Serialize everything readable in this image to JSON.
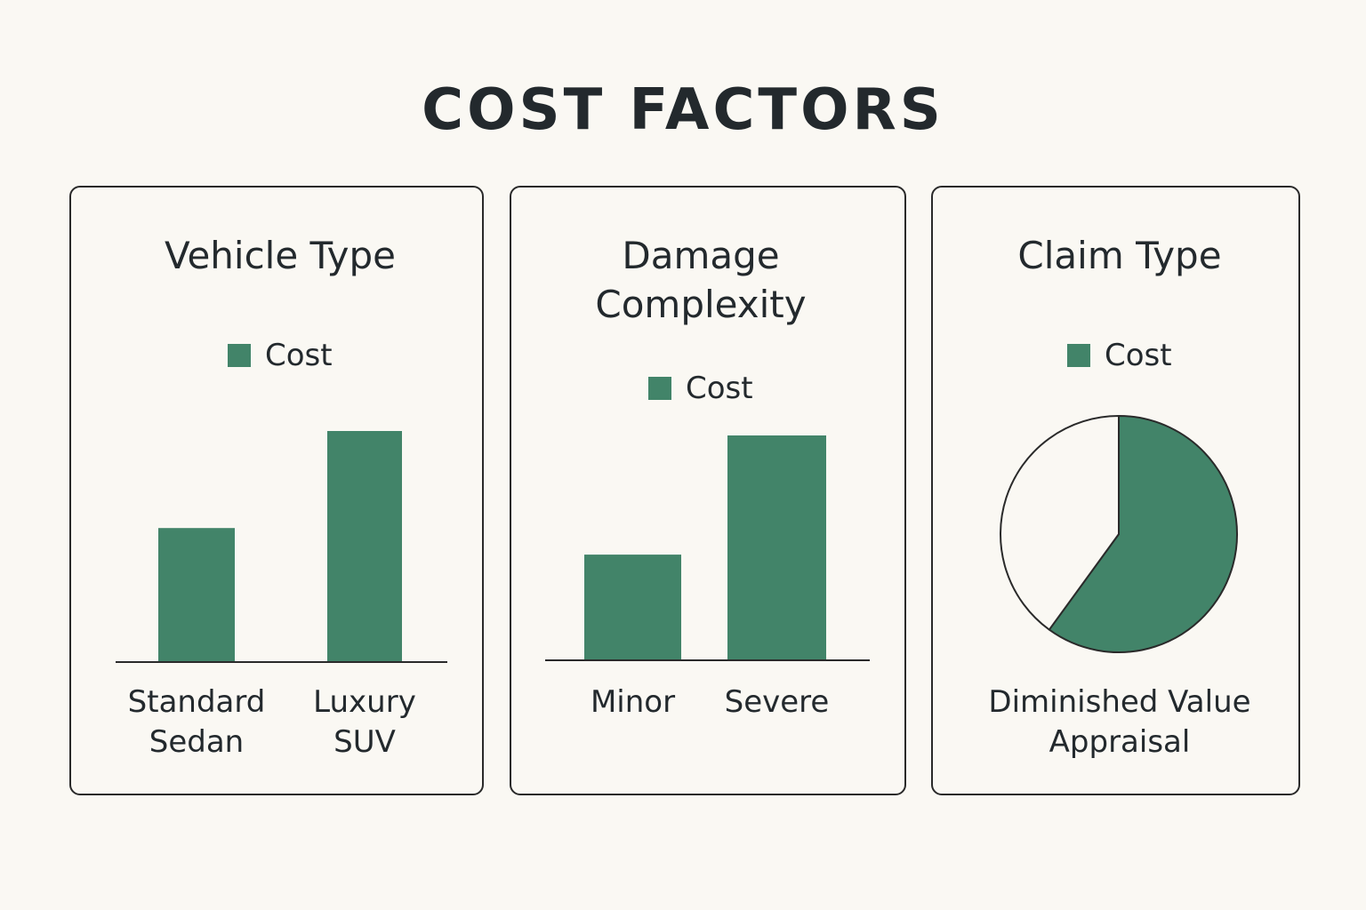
{
  "page": {
    "title": "COST FACTORS"
  },
  "colors": {
    "background": "#faf8f3",
    "bar": "#428469",
    "pie_fill": "#428469",
    "pie_rest": "#faf8f3",
    "border": "#2a2a2a",
    "text": "#23292d"
  },
  "chart_data": [
    {
      "type": "bar",
      "title": "Vehicle Type",
      "title_lines": [
        "Vehicle Type"
      ],
      "legend": [
        "Cost"
      ],
      "legend_position": "top-center",
      "categories": [
        "Standard Sedan",
        "Luxury SUV"
      ],
      "category_lines": [
        [
          "Standard",
          "Sedan"
        ],
        [
          "Luxury",
          "SUV"
        ]
      ],
      "series": [
        {
          "name": "Cost",
          "values": [
            58,
            100
          ]
        }
      ],
      "ylim": [
        0,
        100
      ],
      "grid": false,
      "xlabel": "",
      "ylabel": ""
    },
    {
      "type": "bar",
      "title": "Damage Complexity",
      "title_lines": [
        "Damage",
        "Complexity"
      ],
      "legend": [
        "Cost"
      ],
      "legend_position": "top-center",
      "categories": [
        "Minor",
        "Severe"
      ],
      "category_lines": [
        [
          "Minor"
        ],
        [
          "Severe"
        ]
      ],
      "series": [
        {
          "name": "Cost",
          "values": [
            47,
            100
          ]
        }
      ],
      "ylim": [
        0,
        100
      ],
      "grid": false,
      "xlabel": "",
      "ylabel": ""
    },
    {
      "type": "pie",
      "title": "Claim Type",
      "title_lines": [
        "Claim Type"
      ],
      "legend": [
        "Cost"
      ],
      "legend_position": "top-center",
      "slices": [
        {
          "label": "Diminished Value Appraisal",
          "value": 60,
          "filled": true
        },
        {
          "label": "",
          "value": 40,
          "filled": false
        }
      ],
      "caption_lines": [
        "Diminished Value",
        "Appraisal"
      ]
    }
  ]
}
